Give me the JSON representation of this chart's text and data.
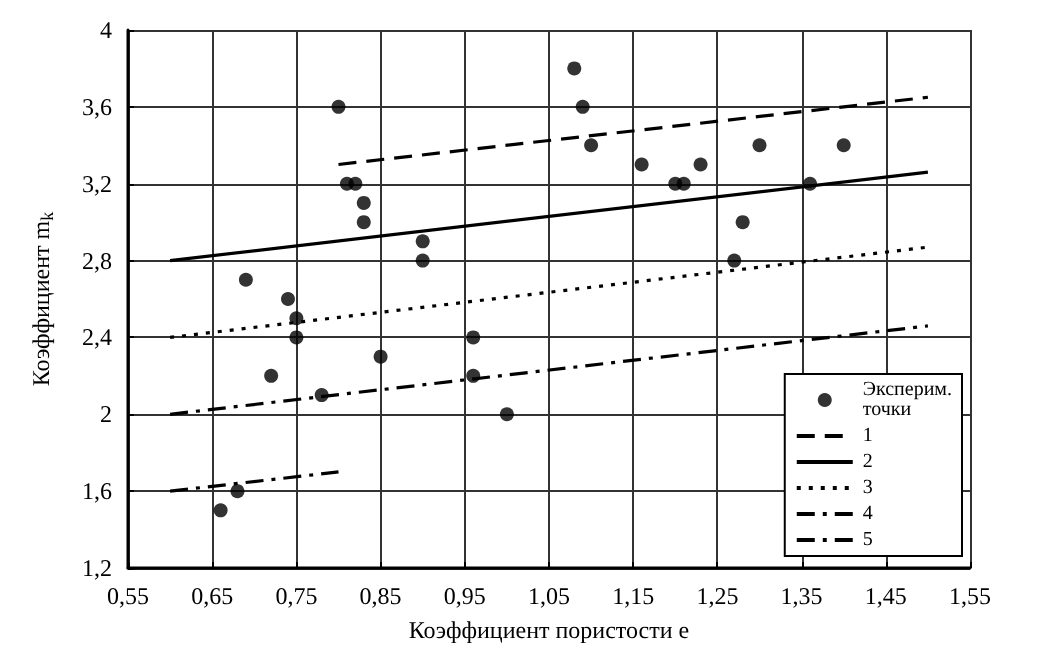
{
  "chart_data": {
    "type": "scatter",
    "xlabel": "Коэффициент пористости e",
    "ylabel": "Коэффициент m$_{k}$",
    "xlim": [
      0.55,
      1.55
    ],
    "xticks": [
      {
        "value": 0.55,
        "label": "0,55"
      },
      {
        "value": 0.65,
        "label": "0,65"
      },
      {
        "value": 0.75,
        "label": "0,75"
      },
      {
        "value": 0.85,
        "label": "0,85"
      },
      {
        "value": 0.95,
        "label": "0,95"
      },
      {
        "value": 1.05,
        "label": "1,05"
      },
      {
        "value": 1.15,
        "label": "1,15"
      },
      {
        "value": 1.25,
        "label": "1,25"
      },
      {
        "value": 1.35,
        "label": "1,35"
      },
      {
        "value": 1.45,
        "label": "1,45"
      },
      {
        "value": 1.55,
        "label": "1,55"
      }
    ],
    "ylim": [
      1.2,
      4
    ],
    "yticks": [
      {
        "value": 1.2,
        "label": "1,2"
      },
      {
        "value": 1.6,
        "label": "1,6"
      },
      {
        "value": 2,
        "label": "2"
      },
      {
        "value": 2.4,
        "label": "2,4"
      },
      {
        "value": 2.8,
        "label": "2,8"
      },
      {
        "value": 3.2,
        "label": "3,2"
      },
      {
        "value": 3.6,
        "label": "3,6"
      },
      {
        "value": 4,
        "label": "4"
      }
    ],
    "grid": true,
    "legend": "bottom right",
    "series": [
      {
        "name": "Эксперим. точки",
        "marker": "circle",
        "color": "#000000",
        "x": [
          0.8,
          0.81,
          0.82,
          0.83,
          0.83,
          0.9,
          0.9,
          0.69,
          0.74,
          0.75,
          0.75,
          0.72,
          0.78,
          0.85,
          0.96,
          0.96,
          1.0,
          0.68,
          0.66,
          1.08,
          1.09,
          1.1,
          1.16,
          1.2,
          1.21,
          1.23,
          1.3,
          1.4,
          1.36,
          1.28,
          1.27
        ],
        "values": [
          3.6,
          3.2,
          3.2,
          3.1,
          3.0,
          2.9,
          2.8,
          2.7,
          2.6,
          2.5,
          2.4,
          2.2,
          2.1,
          2.3,
          2.4,
          2.2,
          2.0,
          1.6,
          1.5,
          3.8,
          3.6,
          3.4,
          3.3,
          3.2,
          3.2,
          3.3,
          3.4,
          3.4,
          3.2,
          3.0,
          2.8
        ]
      },
      {
        "name": "1",
        "type": "line",
        "line_style": "dashed",
        "marker": "none",
        "color": "#000000",
        "x": [
          0.8,
          1.5
        ],
        "values": [
          3.3,
          3.65
        ]
      },
      {
        "name": "2",
        "type": "line",
        "line_style": "solid",
        "marker": "none",
        "color": "#000000",
        "x": [
          0.6,
          1.5
        ],
        "values": [
          2.8,
          3.26
        ]
      },
      {
        "name": "3",
        "type": "line",
        "line_style": "dotted",
        "marker": "none",
        "color": "#000000",
        "x": [
          0.6,
          1.5
        ],
        "values": [
          2.4,
          2.87
        ]
      },
      {
        "name": "4",
        "type": "line",
        "line_style": "dashdot",
        "marker": "none",
        "color": "#000000",
        "x": [
          0.6,
          1.5
        ],
        "values": [
          2.0,
          2.46
        ]
      },
      {
        "name": "5",
        "type": "line",
        "line_style": "dashdot",
        "marker": "none",
        "color": "#000000",
        "x": [
          0.6,
          0.8
        ],
        "values": [
          1.6,
          1.7
        ]
      }
    ]
  }
}
